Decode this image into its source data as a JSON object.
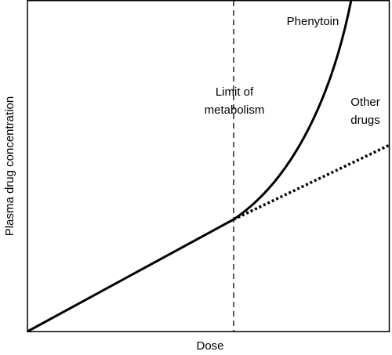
{
  "x_axis_label": "Dose",
  "y_axis_label": "Plasma drug concentration",
  "annotations": {
    "limit": [
      "Limit of",
      "metabolism"
    ],
    "phenytoin": "Phenytoin",
    "other_drugs": [
      "Other",
      "drugs"
    ]
  }
}
